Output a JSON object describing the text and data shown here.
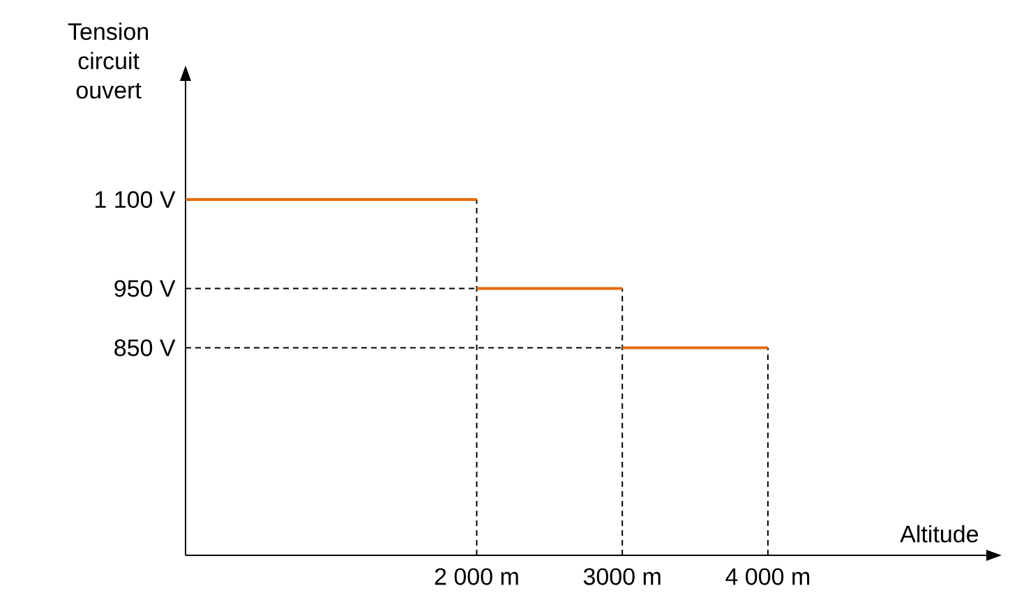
{
  "chart_data": {
    "type": "step",
    "xlabel": "Altitude",
    "ylabel": "Tension circuit ouvert",
    "x": [
      0,
      2000,
      3000,
      4000
    ],
    "series": [
      {
        "color": "#e46c0a",
        "values": [
          1100,
          950,
          850,
          850
        ]
      },
      {
        "type": "line",
        "color": "#000000",
        "line_style": "dashed",
        "x": [
          2000,
          2000
        ],
        "values": [
          500,
          1100
        ]
      },
      {
        "type": "line",
        "color": "#000000",
        "line_style": "dashed",
        "x": [
          3000,
          3000
        ],
        "values": [
          500,
          950
        ]
      },
      {
        "type": "line",
        "color": "#000000",
        "line_style": "dashed",
        "x": [
          4000,
          4000
        ],
        "values": [
          500,
          850
        ]
      },
      {
        "type": "line",
        "color": "#000000",
        "line_style": "dashed",
        "x": [
          0,
          2000
        ],
        "values": [
          950,
          950
        ]
      },
      {
        "type": "line",
        "color": "#000000",
        "line_style": "dashed",
        "x": [
          0,
          3000
        ],
        "values": [
          850,
          850
        ]
      }
    ],
    "xlim": [
      0,
      5500
    ],
    "ylim": [
      500,
      1300
    ],
    "xticks": [
      {
        "value": 2000,
        "label": "2 000 m"
      },
      {
        "value": 3000,
        "label": "3000 m"
      },
      {
        "value": 4000,
        "label": "4 000 m"
      }
    ],
    "yticks": [
      {
        "value": 850,
        "label": "850 V"
      },
      {
        "value": 950,
        "label": "950 V"
      },
      {
        "value": 1100,
        "label": "1 100 V"
      }
    ],
    "grid": false,
    "marker": "none",
    "line_style": "solid"
  }
}
